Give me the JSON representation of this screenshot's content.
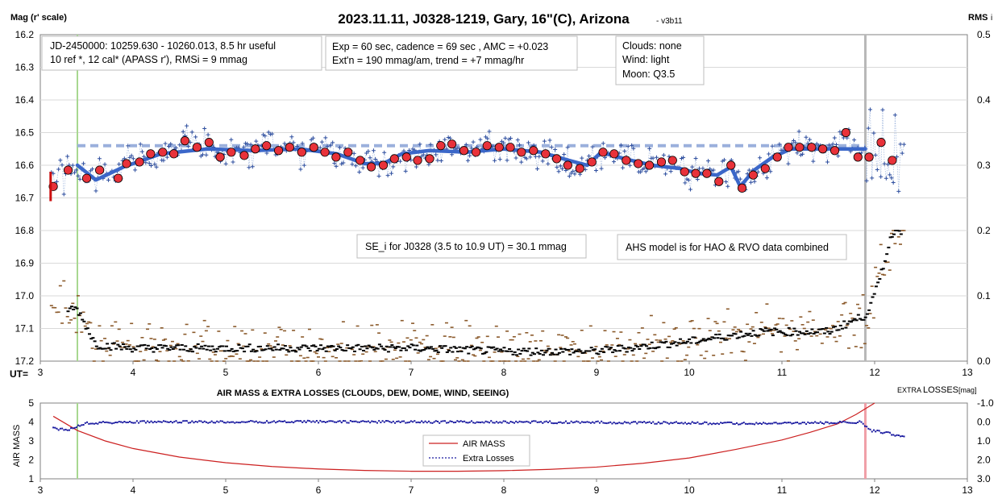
{
  "top_chart": {
    "title": "2023.11.11, J0328-1219, Gary, 16\"(C), Arizona",
    "version": "- v3b11",
    "ylabel_left": "Mag (r' scale)",
    "ylabel_right": "RMS",
    "ylabel_right_sub": "i",
    "xlabel": "UT=",
    "info_box_1": [
      "JD-2450000: 10259.630 - 10260.013, 8.5 hr useful",
      "10 ref *, 12 cal*  (APASS r'), RMSi = 9 mmag"
    ],
    "info_box_2": [
      "Exp = 60 sec, cadence = 69 sec , AMC = +0.023",
      "Ext'n = 190 mmag/am, trend = +7 mmag/hr"
    ],
    "info_box_3": [
      "Clouds: none",
      "Wind:  light",
      "Moon:  Q3.5"
    ],
    "se_note": "SE_i for J0328 (3.5 to 10.9 UT) = 30.1 mmag",
    "ahs_note": "AHS model is for HAO & RVO data combined",
    "colors": {
      "points": "#2f4f9f",
      "binned": "#e8323a",
      "model": "#3b67c9",
      "reference": "#9bb0dc",
      "rms_a": "#8b5a2b",
      "rms_b": "#000000",
      "marker_green": "#a8d890",
      "marker_grey": "#b8b8b8"
    }
  },
  "bottom_chart": {
    "title": "AIR MASS & EXTRA LOSSES (CLOUDS, DEW, DOME, WIND, SEEING)",
    "ylabel_left": "AIR MASS",
    "ylabel_right_a": "EXTRA",
    "ylabel_right_b": "LOSSES",
    "ylabel_right_unit": "[mag]",
    "legend": [
      "AIR MASS",
      "Extra Losses"
    ],
    "colors": {
      "air_mass": "#cc2020",
      "extra_losses": "#1a1aa0",
      "marker_green": "#a8d890",
      "marker_pink": "#f0a0a8"
    }
  },
  "chart_data": [
    {
      "type": "scatter",
      "title": "2023.11.11, J0328-1219, Gary, 16\"(C), Arizona",
      "xlabel": "UT=",
      "ylabel": "Mag (r' scale)",
      "y2label": "RMS i",
      "xlim": [
        3,
        13
      ],
      "ylim": [
        17.2,
        16.2
      ],
      "y2lim": [
        0,
        0.5
      ],
      "xticks": [
        3,
        4,
        5,
        6,
        7,
        8,
        9,
        10,
        11,
        12,
        13
      ],
      "yticks": [
        16.2,
        16.3,
        16.4,
        16.5,
        16.6,
        16.7,
        16.8,
        16.9,
        17.0,
        17.1,
        17.2
      ],
      "y2ticks": [
        0.0,
        0.1,
        0.2,
        0.3,
        0.4,
        0.5
      ],
      "reference_level": 16.54,
      "markers_x": [
        3.4,
        11.9
      ],
      "series": [
        {
          "name": "",
          "kind": "binned",
          "x": [
            3.14,
            3.3,
            3.5,
            3.64,
            3.84,
            3.93,
            4.07,
            4.19,
            4.32,
            4.44,
            4.56,
            4.69,
            4.82,
            4.94,
            5.06,
            5.2,
            5.32,
            5.44,
            5.57,
            5.69,
            5.82,
            5.95,
            6.07,
            6.19,
            6.32,
            6.45,
            6.57,
            6.7,
            6.82,
            6.95,
            7.07,
            7.2,
            7.32,
            7.44,
            7.57,
            7.7,
            7.82,
            7.95,
            8.07,
            8.19,
            8.32,
            8.45,
            8.57,
            8.69,
            8.82,
            8.95,
            9.07,
            9.19,
            9.32,
            9.45,
            9.57,
            9.7,
            9.82,
            9.95,
            10.07,
            10.19,
            10.32,
            10.45,
            10.57,
            10.69,
            10.82,
            10.95,
            11.07,
            11.19,
            11.32,
            11.44,
            11.57,
            11.69,
            11.82,
            11.94,
            12.07,
            12.19
          ],
          "y": [
            16.665,
            16.615,
            16.64,
            16.615,
            16.64,
            16.595,
            16.59,
            16.565,
            16.56,
            16.565,
            16.525,
            16.545,
            16.53,
            16.575,
            16.56,
            16.57,
            16.55,
            16.54,
            16.555,
            16.545,
            16.56,
            16.545,
            16.56,
            16.575,
            16.56,
            16.585,
            16.605,
            16.6,
            16.58,
            16.575,
            16.585,
            16.58,
            16.54,
            16.535,
            16.555,
            16.56,
            16.54,
            16.545,
            16.545,
            16.56,
            16.555,
            16.565,
            16.58,
            16.6,
            16.61,
            16.59,
            16.56,
            16.565,
            16.585,
            16.595,
            16.6,
            16.59,
            16.585,
            16.62,
            16.625,
            16.625,
            16.65,
            16.6,
            16.67,
            16.63,
            16.61,
            16.575,
            16.545,
            16.545,
            16.545,
            16.55,
            16.555,
            16.5,
            16.575,
            16.575,
            16.53,
            16.585
          ]
        },
        {
          "name": "",
          "kind": "model",
          "x": [
            3.4,
            3.6,
            3.9,
            4.3,
            4.8,
            5.3,
            5.8,
            6.2,
            6.5,
            6.7,
            6.9,
            7.2,
            7.6,
            8.0,
            8.4,
            8.7,
            8.9,
            9.05,
            9.3,
            9.6,
            9.9,
            10.1,
            10.3,
            10.45,
            10.55,
            10.7,
            10.9,
            11.1,
            11.4,
            11.9
          ],
          "y": [
            16.6,
            16.645,
            16.605,
            16.565,
            16.55,
            16.555,
            16.55,
            16.565,
            16.595,
            16.595,
            16.565,
            16.555,
            16.56,
            16.55,
            16.56,
            16.585,
            16.6,
            16.56,
            16.58,
            16.6,
            16.61,
            16.625,
            16.63,
            16.605,
            16.665,
            16.615,
            16.575,
            16.55,
            16.55,
            16.55
          ]
        },
        {
          "name": "",
          "kind": "rms_moving_average",
          "x": [
            3.4,
            3.6,
            4.0,
            5.0,
            6.0,
            7.0,
            8.0,
            9.0,
            10.0,
            10.5,
            10.8,
            11.0,
            11.5,
            11.9,
            12.0,
            12.1,
            12.2
          ],
          "y": [
            0.08,
            0.025,
            0.02,
            0.02,
            0.02,
            0.02,
            0.015,
            0.015,
            0.03,
            0.04,
            0.045,
            0.045,
            0.045,
            0.07,
            0.1,
            0.15,
            0.2
          ]
        }
      ]
    },
    {
      "type": "line",
      "title": "AIR MASS & EXTRA LOSSES (CLOUDS, DEW, DOME, WIND, SEEING)",
      "xlabel": "",
      "ylabel": "AIR MASS",
      "y2label": "EXTRA LOSSES [mag]",
      "xlim": [
        3,
        13
      ],
      "ylim": [
        1,
        5
      ],
      "y2lim": [
        3.0,
        -1.0
      ],
      "xticks": [
        3,
        4,
        5,
        6,
        7,
        8,
        9,
        10,
        11,
        12,
        13
      ],
      "yticks": [
        1,
        2,
        3,
        4,
        5
      ],
      "y2ticks": [
        -1.0,
        0.0,
        1.0,
        2.0,
        3.0
      ],
      "y2ticklabels": [
        "-1.0",
        "0.0",
        "1.0",
        "2.0",
        "3.0"
      ],
      "legend_position": "center-right",
      "series": [
        {
          "name": "AIR MASS",
          "axis": "left",
          "x": [
            3.14,
            3.4,
            3.7,
            4.0,
            4.5,
            5.0,
            5.5,
            6.0,
            6.5,
            7.0,
            7.5,
            8.0,
            8.5,
            9.0,
            9.5,
            10.0,
            10.5,
            11.0,
            11.3,
            11.6,
            11.8,
            12.0
          ],
          "y": [
            4.3,
            3.55,
            3.0,
            2.6,
            2.15,
            1.85,
            1.65,
            1.52,
            1.44,
            1.4,
            1.4,
            1.43,
            1.5,
            1.62,
            1.82,
            2.1,
            2.55,
            3.05,
            3.45,
            3.9,
            4.4,
            5.0
          ]
        },
        {
          "name": "Extra Losses",
          "axis": "right",
          "x": [
            3.14,
            3.3,
            3.5,
            4.0,
            5.0,
            6.0,
            7.0,
            8.0,
            9.0,
            10.0,
            10.5,
            11.0,
            11.5,
            11.85,
            11.95,
            12.1,
            12.3
          ],
          "y": [
            0.35,
            0.4,
            0.05,
            0.0,
            0.0,
            -0.02,
            0.0,
            0.0,
            0.02,
            0.05,
            0.08,
            0.07,
            0.05,
            0.0,
            0.45,
            0.55,
            0.75
          ]
        }
      ]
    }
  ]
}
